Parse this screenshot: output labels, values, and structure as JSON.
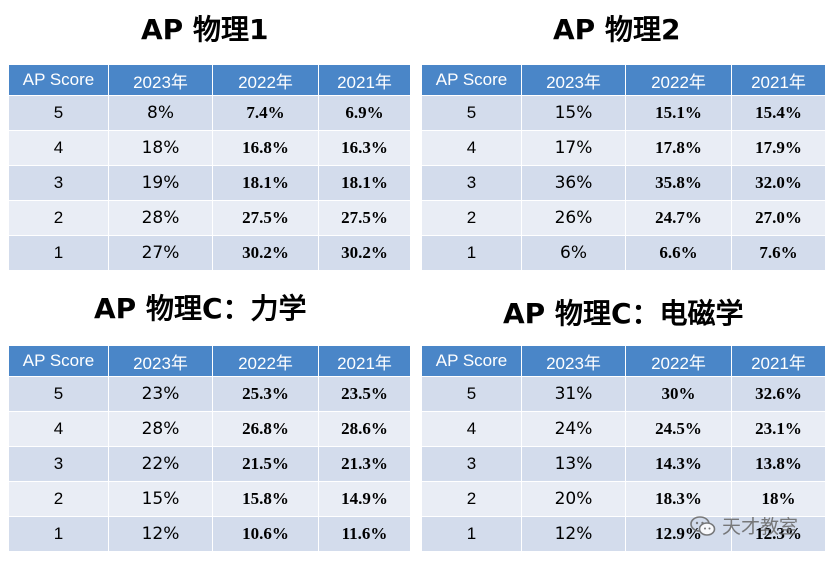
{
  "header_labels": [
    "AP Score",
    "2023年",
    "2022年",
    "2021年"
  ],
  "panels": [
    {
      "title": "AP 物理1",
      "rows": [
        {
          "score": "5",
          "y2023": "8%",
          "y2022": "7.4%",
          "y2021": "6.9%"
        },
        {
          "score": "4",
          "y2023": "18%",
          "y2022": "16.8%",
          "y2021": "16.3%"
        },
        {
          "score": "3",
          "y2023": "19%",
          "y2022": "18.1%",
          "y2021": "18.1%"
        },
        {
          "score": "2",
          "y2023": "28%",
          "y2022": "27.5%",
          "y2021": "27.5%"
        },
        {
          "score": "1",
          "y2023": "27%",
          "y2022": "30.2%",
          "y2021": "30.2%"
        }
      ]
    },
    {
      "title": "AP 物理2",
      "rows": [
        {
          "score": "5",
          "y2023": "15%",
          "y2022": "15.1%",
          "y2021": "15.4%"
        },
        {
          "score": "4",
          "y2023": "17%",
          "y2022": "17.8%",
          "y2021": "17.9%"
        },
        {
          "score": "3",
          "y2023": "36%",
          "y2022": "35.8%",
          "y2021": "32.0%"
        },
        {
          "score": "2",
          "y2023": "26%",
          "y2022": "24.7%",
          "y2021": "27.0%"
        },
        {
          "score": "1",
          "y2023": "6%",
          "y2022": "6.6%",
          "y2021": "7.6%"
        }
      ]
    },
    {
      "title": "AP 物理C：力学",
      "rows": [
        {
          "score": "5",
          "y2023": "23%",
          "y2022": "25.3%",
          "y2021": "23.5%"
        },
        {
          "score": "4",
          "y2023": "28%",
          "y2022": "26.8%",
          "y2021": "28.6%"
        },
        {
          "score": "3",
          "y2023": "22%",
          "y2022": "21.5%",
          "y2021": "21.3%"
        },
        {
          "score": "2",
          "y2023": "15%",
          "y2022": "15.8%",
          "y2021": "14.9%"
        },
        {
          "score": "1",
          "y2023": "12%",
          "y2022": "10.6%",
          "y2021": "11.6%"
        }
      ]
    },
    {
      "title": "AP 物理C：电磁学",
      "rows": [
        {
          "score": "5",
          "y2023": "31%",
          "y2022": "30%",
          "y2021": "32.6%"
        },
        {
          "score": "4",
          "y2023": "24%",
          "y2022": "24.5%",
          "y2021": "23.1%"
        },
        {
          "score": "3",
          "y2023": "13%",
          "y2022": "14.3%",
          "y2021": "13.8%"
        },
        {
          "score": "2",
          "y2023": "20%",
          "y2022": "18.3%",
          "y2021": "18%"
        },
        {
          "score": "1",
          "y2023": "12%",
          "y2022": "12.9%",
          "y2021": "12.3%"
        }
      ]
    }
  ],
  "watermark": {
    "text": "天才教室",
    "icon": "wechat-icon"
  }
}
